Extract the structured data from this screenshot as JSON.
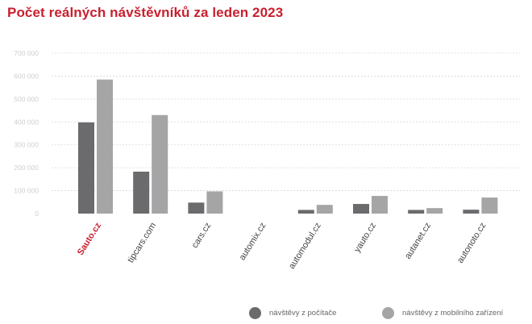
{
  "colors": {
    "accent": "#c8202f",
    "desktop": "#6b6b6e",
    "mobile": "#a5a5a6",
    "grid": "#d7d7d7",
    "tick": "#cfcfcf",
    "label": "#444444"
  },
  "chart_data": {
    "type": "bar",
    "title": "Počet reálných návštěvníků za leden 2023",
    "xlabel": "",
    "ylabel": "",
    "ylim": [
      0,
      700000
    ],
    "yticks": [
      0,
      100000,
      200000,
      300000,
      400000,
      500000,
      600000,
      700000
    ],
    "ytick_labels": [
      "0",
      "100 000",
      "200 000",
      "300 000",
      "400 000",
      "500 000",
      "600 000",
      "700 000"
    ],
    "grid": true,
    "legend_position": "bottom-right",
    "categories": [
      "Sauto.cz",
      "tipcars.com",
      "cars.cz",
      "automix.cz",
      "automodul.cz",
      "yauto.cz",
      "autanet.cz",
      "autonoto.cz"
    ],
    "highlight_category": 0,
    "series": [
      {
        "name": "návštěvy z počítače",
        "values": [
          398000,
          183000,
          48000,
          0,
          16000,
          42000,
          16000,
          17000
        ]
      },
      {
        "name": "návštěvy z mobilního zařízení",
        "values": [
          585000,
          430000,
          97000,
          0,
          38000,
          77000,
          24000,
          70000
        ]
      }
    ]
  }
}
